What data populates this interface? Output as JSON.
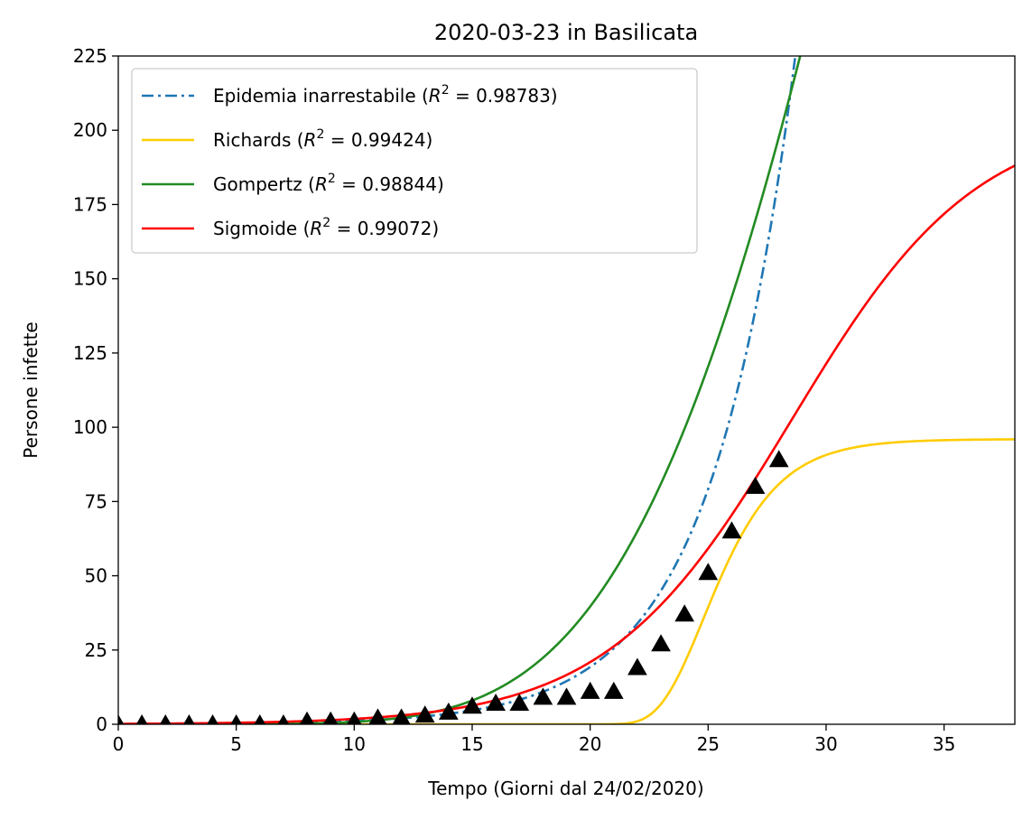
{
  "chart_data": {
    "type": "line",
    "title": "2020-03-23 in Basilicata",
    "xlabel": "Tempo (Giorni dal 24/02/2020)",
    "ylabel": "Persone infette",
    "xlim": [
      0,
      38
    ],
    "ylim": [
      0,
      225
    ],
    "xticks": [
      0,
      5,
      10,
      15,
      20,
      25,
      30,
      35
    ],
    "yticks": [
      0,
      25,
      50,
      75,
      100,
      125,
      150,
      175,
      200,
      225
    ],
    "grid": false,
    "legend_position": "top-left",
    "series": [
      {
        "name": "Epidemia inarrestabile",
        "r2_label": "R",
        "r2_sup": "2",
        "r2_value": " = 0.98783)",
        "color": "#1f77b4",
        "dash": "dashdot",
        "model": "exponential",
        "params": {
          "a": 0.0675,
          "b": 0.2827
        }
      },
      {
        "name": "Richards",
        "r2_label": "R",
        "r2_sup": "2",
        "r2_value": " = 0.99424)",
        "color": "#ffcc00",
        "dash": "solid",
        "model": "richards",
        "params": {
          "K": 96,
          "r": 0.55,
          "t0": 24.8,
          "nu": 0.0125
        }
      },
      {
        "name": "Gompertz",
        "r2_label": "R",
        "r2_sup": "2",
        "r2_value": " = 0.98844)",
        "color": "#228b22",
        "dash": "solid",
        "model": "gompertz",
        "params": {
          "K": 1500,
          "b": 15.645,
          "c": 0.073
        }
      },
      {
        "name": "Sigmoide",
        "r2_label": "R",
        "r2_sup": "2",
        "r2_value": " = 0.99072)",
        "color": "#ff0000",
        "dash": "solid",
        "model": "logistic",
        "params": {
          "K": 205,
          "r": 0.2546,
          "t0": 28.54
        }
      }
    ],
    "observed": {
      "marker": "triangle",
      "color": "#000000",
      "x": [
        0,
        1,
        2,
        3,
        4,
        5,
        6,
        7,
        8,
        9,
        10,
        11,
        12,
        13,
        14,
        15,
        16,
        17,
        18,
        19,
        20,
        21,
        22,
        23,
        24,
        25,
        26,
        27,
        28
      ],
      "y": [
        0,
        0,
        0,
        0,
        0,
        0,
        0,
        0,
        1,
        1,
        1,
        2,
        2,
        3,
        4,
        6,
        7,
        7,
        9,
        9,
        11,
        11,
        19,
        27,
        37,
        51,
        65,
        80,
        89
      ]
    }
  }
}
